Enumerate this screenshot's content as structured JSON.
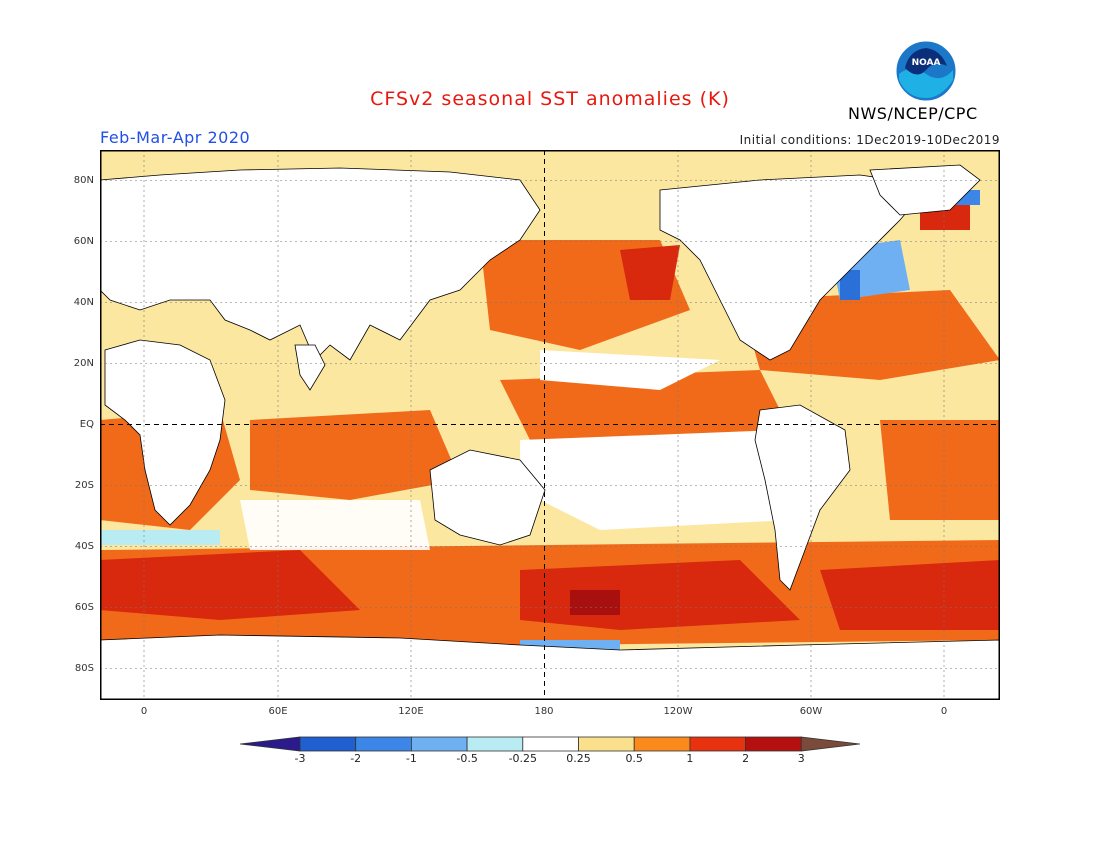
{
  "title": "CFSv2 seasonal SST anomalies (K)",
  "agency": "NWS/NCEP/CPC",
  "logo_text": "NOAA",
  "season": "Feb-Mar-Apr 2020",
  "initial_conditions": "Initial conditions: 1Dec2019-10Dec2019",
  "lat_labels": [
    "80N",
    "60N",
    "40N",
    "20N",
    "EQ",
    "20S",
    "40S",
    "60S",
    "80S"
  ],
  "lon_labels": [
    "0",
    "60E",
    "120E",
    "180",
    "120W",
    "60W",
    "0"
  ],
  "colorbar": {
    "labels": [
      "-3",
      "-2",
      "-1",
      "-0.5",
      "-0.25",
      "0.25",
      "0.5",
      "1",
      "2",
      "3"
    ],
    "colors": [
      "#2a1a8c",
      "#1f5fd0",
      "#3b86e6",
      "#6eb0f2",
      "#b8ecf2",
      "#ffffff",
      "#fae08c",
      "#fb8a1c",
      "#e8320f",
      "#b41010",
      "#7a4a3a"
    ]
  },
  "map_colors": {
    "land": "#ffffff",
    "ocean_base": "#fce7a0",
    "warm1": "#f7a44a",
    "warm2": "#f06a1a",
    "warm3": "#d8280e",
    "hot": "#a81010",
    "cool1": "#b8ecf2",
    "cool2": "#6eb0f2",
    "cool3": "#2a70d8"
  }
}
